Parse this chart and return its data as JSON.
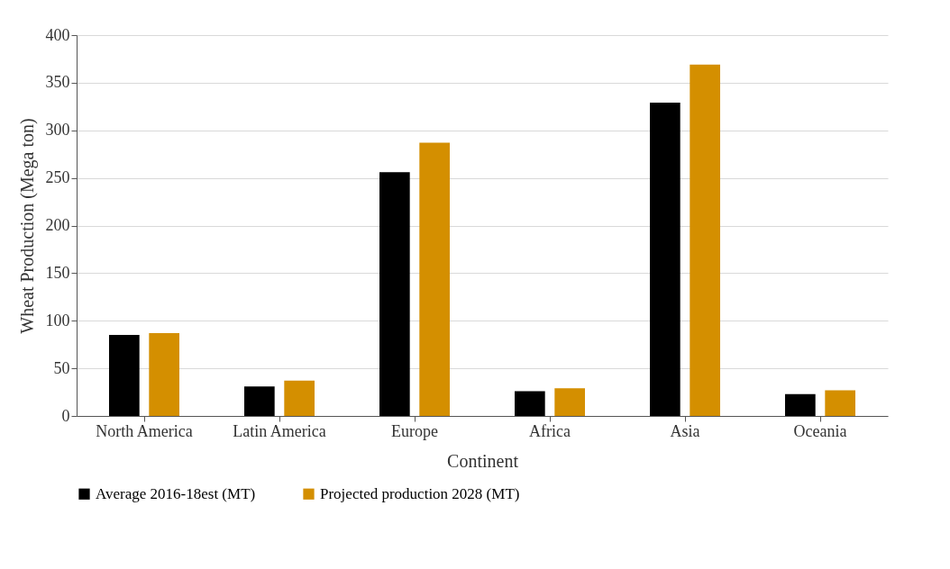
{
  "chart_data": {
    "type": "bar",
    "xlabel": "Continent",
    "ylabel": "Wheat Production (Mega ton)",
    "categories": [
      "North America",
      "Latin America",
      "Europe",
      "Africa",
      "Asia",
      "Oceania"
    ],
    "series": [
      {
        "name": "Average 2016-18est (MT)",
        "color": "#000000",
        "values": [
          85,
          31,
          256,
          26,
          329,
          23
        ]
      },
      {
        "name": "Projected production 2028 (MT)",
        "color": "#d48f00",
        "values": [
          87,
          37,
          287,
          29,
          369,
          27
        ]
      }
    ],
    "ylim": [
      0,
      400
    ],
    "yticks": [
      0,
      50,
      100,
      150,
      200,
      250,
      300,
      350,
      400
    ],
    "grid": "y",
    "legend": "bottom"
  }
}
